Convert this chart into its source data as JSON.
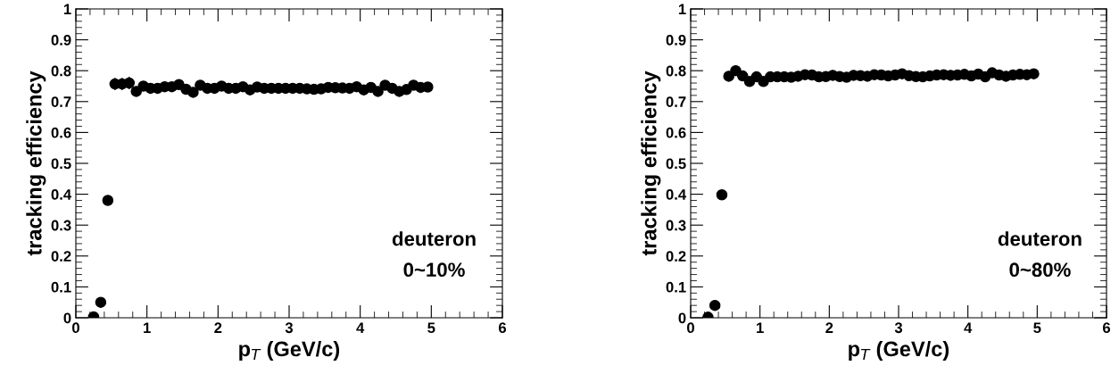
{
  "chart_data": [
    {
      "type": "scatter",
      "xlabel": "p$_{T}$ (GeV/c)",
      "ylabel": "tracking efficiency",
      "annotations": [
        "deuteron",
        "0~10%"
      ],
      "marker": "circle",
      "grid": false,
      "xlim": [
        0,
        6
      ],
      "ylim": [
        0,
        1
      ],
      "xticks": [
        0,
        1,
        2,
        3,
        4,
        5,
        6
      ],
      "yticks": [
        0,
        0.1,
        0.2,
        0.3,
        0.4,
        0.5,
        0.6,
        0.7,
        0.8,
        0.9,
        1
      ],
      "x": [
        0.25,
        0.35,
        0.45,
        0.55,
        0.65,
        0.75,
        0.85,
        0.95,
        1.05,
        1.15,
        1.25,
        1.35,
        1.45,
        1.55,
        1.65,
        1.75,
        1.85,
        1.95,
        2.05,
        2.15,
        2.25,
        2.35,
        2.45,
        2.55,
        2.65,
        2.75,
        2.85,
        2.95,
        3.05,
        3.15,
        3.25,
        3.35,
        3.45,
        3.55,
        3.65,
        3.75,
        3.85,
        3.95,
        4.05,
        4.15,
        4.25,
        4.35,
        4.45,
        4.55,
        4.65,
        4.75,
        4.85,
        4.95
      ],
      "series": [
        {
          "color": "#000000",
          "values": [
            0.003,
            0.05,
            0.38,
            0.757,
            0.757,
            0.76,
            0.733,
            0.75,
            0.743,
            0.743,
            0.748,
            0.748,
            0.755,
            0.74,
            0.73,
            0.753,
            0.743,
            0.743,
            0.75,
            0.743,
            0.743,
            0.748,
            0.738,
            0.747,
            0.743,
            0.743,
            0.743,
            0.743,
            0.743,
            0.743,
            0.741,
            0.74,
            0.741,
            0.746,
            0.745,
            0.744,
            0.743,
            0.748,
            0.738,
            0.746,
            0.733,
            0.753,
            0.743,
            0.733,
            0.739,
            0.753,
            0.746,
            0.747
          ],
          "errors": [
            null,
            null,
            0.015,
            0.02,
            0.02,
            0.02,
            0.015,
            0.015,
            0.015,
            0.015,
            0.015,
            0.015,
            0.015,
            0.015,
            0.015,
            0.012,
            0.012,
            0.012,
            0.012,
            0.012,
            0.012,
            0.012,
            0.012,
            0.012,
            0.012,
            0.012,
            0.012,
            0.012,
            0.012,
            0.012,
            0.012,
            0.012,
            0.012,
            0.012,
            0.012,
            0.012,
            0.012,
            0.012,
            0.012,
            0.012,
            0.012,
            0.012,
            0.012,
            0.012,
            0.012,
            0.012,
            0.012,
            0.012
          ]
        }
      ]
    },
    {
      "type": "scatter",
      "xlabel": "p$_{T}$ (GeV/c)",
      "ylabel": "tracking efficiency",
      "annotations": [
        "deuteron",
        "0~80%"
      ],
      "marker": "circle",
      "grid": false,
      "xlim": [
        0,
        6
      ],
      "ylim": [
        0,
        1
      ],
      "xticks": [
        0,
        1,
        2,
        3,
        4,
        5,
        6
      ],
      "yticks": [
        0,
        0.1,
        0.2,
        0.3,
        0.4,
        0.5,
        0.6,
        0.7,
        0.8,
        0.9,
        1
      ],
      "x": [
        0.25,
        0.35,
        0.45,
        0.55,
        0.65,
        0.75,
        0.85,
        0.95,
        1.05,
        1.15,
        1.25,
        1.35,
        1.45,
        1.55,
        1.65,
        1.75,
        1.85,
        1.95,
        2.05,
        2.15,
        2.25,
        2.35,
        2.45,
        2.55,
        2.65,
        2.75,
        2.85,
        2.95,
        3.05,
        3.15,
        3.25,
        3.35,
        3.45,
        3.55,
        3.65,
        3.75,
        3.85,
        3.95,
        4.05,
        4.15,
        4.25,
        4.35,
        4.45,
        4.55,
        4.65,
        4.75,
        4.85,
        4.95
      ],
      "series": [
        {
          "color": "#000000",
          "values": [
            0.002,
            0.04,
            0.398,
            0.782,
            0.8,
            0.783,
            0.765,
            0.78,
            0.765,
            0.78,
            0.78,
            0.78,
            0.779,
            0.782,
            0.787,
            0.786,
            0.78,
            0.781,
            0.785,
            0.781,
            0.779,
            0.785,
            0.784,
            0.782,
            0.787,
            0.786,
            0.783,
            0.786,
            0.79,
            0.784,
            0.781,
            0.78,
            0.783,
            0.786,
            0.787,
            0.785,
            0.786,
            0.788,
            0.783,
            0.789,
            0.78,
            0.793,
            0.786,
            0.782,
            0.786,
            0.788,
            0.787,
            0.79
          ]
        }
      ]
    }
  ]
}
